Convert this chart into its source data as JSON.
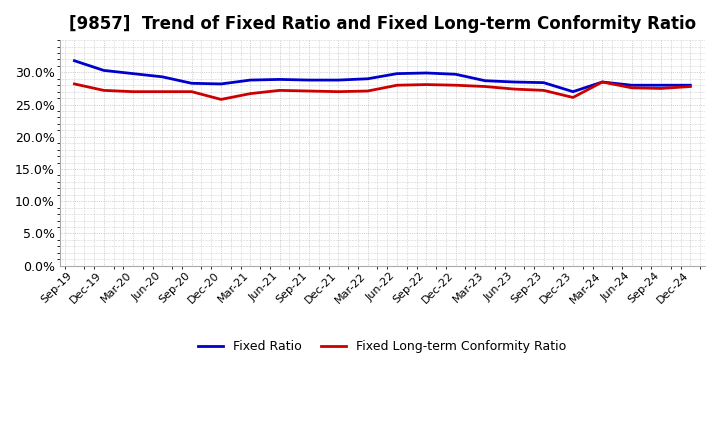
{
  "title": "[9857]  Trend of Fixed Ratio and Fixed Long-term Conformity Ratio",
  "x_labels": [
    "Sep-19",
    "Dec-19",
    "Mar-20",
    "Jun-20",
    "Sep-20",
    "Dec-20",
    "Mar-21",
    "Jun-21",
    "Sep-21",
    "Dec-21",
    "Mar-22",
    "Jun-22",
    "Sep-22",
    "Dec-22",
    "Mar-23",
    "Jun-23",
    "Sep-23",
    "Dec-23",
    "Mar-24",
    "Jun-24",
    "Sep-24",
    "Dec-24"
  ],
  "fixed_ratio": [
    31.8,
    30.3,
    29.8,
    29.3,
    28.3,
    28.2,
    28.8,
    28.9,
    28.8,
    28.8,
    29.0,
    29.8,
    29.9,
    29.7,
    28.7,
    28.5,
    28.4,
    27.0,
    28.5,
    28.0,
    28.0,
    28.0
  ],
  "fixed_lt_ratio": [
    28.2,
    27.2,
    27.0,
    27.0,
    27.0,
    25.8,
    26.7,
    27.2,
    27.1,
    27.0,
    27.1,
    28.0,
    28.1,
    28.0,
    27.8,
    27.4,
    27.2,
    26.1,
    28.5,
    27.6,
    27.5,
    27.8
  ],
  "fixed_ratio_color": "#0000cc",
  "fixed_lt_ratio_color": "#cc0000",
  "ylim": [
    0,
    35
  ],
  "yticks": [
    0.0,
    5.0,
    10.0,
    15.0,
    20.0,
    25.0,
    30.0
  ],
  "background_color": "#ffffff",
  "plot_bg_color": "#ffffff",
  "grid_color": "#aaaaaa",
  "title_fontsize": 12,
  "legend_fixed_ratio": "Fixed Ratio",
  "legend_fixed_lt_ratio": "Fixed Long-term Conformity Ratio"
}
